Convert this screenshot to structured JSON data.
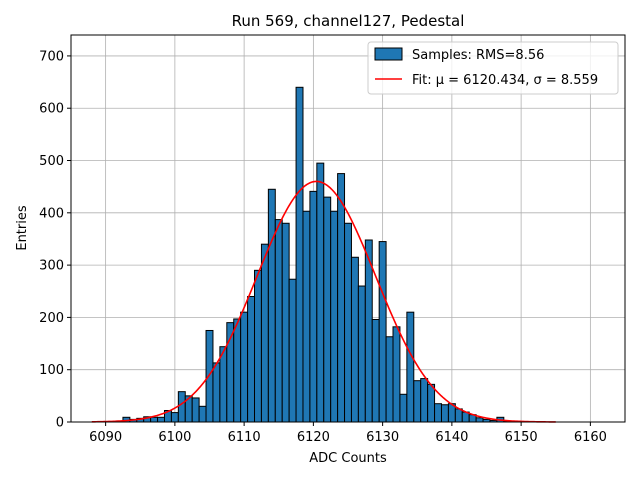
{
  "chart_data": {
    "type": "bar",
    "title": "Run 569, channel127, Pedestal",
    "xlabel": "ADC Counts",
    "ylabel": "Entries",
    "xlim": [
      6085,
      6165
    ],
    "ylim": [
      0,
      740
    ],
    "xticks": [
      6090,
      6100,
      6110,
      6120,
      6130,
      6140,
      6150,
      6160
    ],
    "yticks": [
      0,
      100,
      200,
      300,
      400,
      500,
      600,
      700
    ],
    "grid": true,
    "legend_position": "top-right",
    "bin_start": 6092,
    "bin_width": 1,
    "bar_color": "#1f77b4",
    "bar_edge_color": "#000000",
    "fit_color": "#ff0000",
    "bins": [
      [
        6092,
        2
      ],
      [
        6093,
        9
      ],
      [
        6094,
        5
      ],
      [
        6095,
        7
      ],
      [
        6096,
        10
      ],
      [
        6097,
        9
      ],
      [
        6098,
        9
      ],
      [
        6099,
        22
      ],
      [
        6100,
        18
      ],
      [
        6101,
        58
      ],
      [
        6102,
        50
      ],
      [
        6103,
        46
      ],
      [
        6104,
        30
      ],
      [
        6105,
        175
      ],
      [
        6106,
        113
      ],
      [
        6107,
        144
      ],
      [
        6108,
        190
      ],
      [
        6109,
        197
      ],
      [
        6110,
        210
      ],
      [
        6111,
        240
      ],
      [
        6112,
        290
      ],
      [
        6113,
        340
      ],
      [
        6114,
        445
      ],
      [
        6115,
        387
      ],
      [
        6116,
        380
      ],
      [
        6117,
        273
      ],
      [
        6118,
        640
      ],
      [
        6119,
        403
      ],
      [
        6120,
        441
      ],
      [
        6121,
        495
      ],
      [
        6122,
        430
      ],
      [
        6123,
        403
      ],
      [
        6124,
        475
      ],
      [
        6125,
        380
      ],
      [
        6126,
        315
      ],
      [
        6127,
        260
      ],
      [
        6128,
        348
      ],
      [
        6129,
        196
      ],
      [
        6130,
        345
      ],
      [
        6131,
        163
      ],
      [
        6132,
        182
      ],
      [
        6133,
        53
      ],
      [
        6134,
        210
      ],
      [
        6135,
        79
      ],
      [
        6136,
        83
      ],
      [
        6137,
        72
      ],
      [
        6138,
        35
      ],
      [
        6139,
        33
      ],
      [
        6140,
        35
      ],
      [
        6141,
        25
      ],
      [
        6142,
        19
      ],
      [
        6143,
        14
      ],
      [
        6144,
        8
      ],
      [
        6145,
        5
      ],
      [
        6146,
        3
      ],
      [
        6147,
        9
      ],
      [
        6148,
        2
      ]
    ],
    "series": [
      {
        "name": "Samples: RMS=8.56",
        "type": "histogram"
      },
      {
        "name": "Fit: μ = 6120.434, σ = 8.559",
        "type": "line",
        "mu": 6120.434,
        "sigma": 8.559,
        "amplitude": 460,
        "x_range": [
          6088,
          6155
        ]
      }
    ]
  }
}
